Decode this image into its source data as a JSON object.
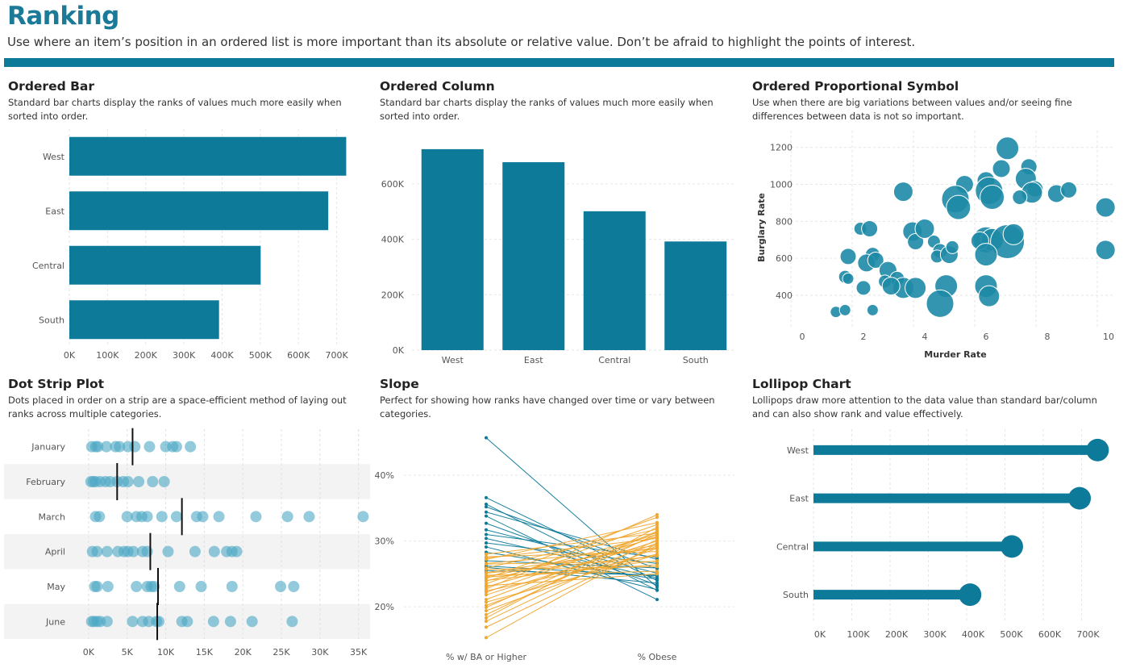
{
  "header": {
    "title": "Ranking",
    "subtitle": "Use where an item’s position in an ordered list is more important than its absolute or relative value. Don’t be afraid to highlight the points of interest."
  },
  "colors": {
    "accent": "#0e7a9a",
    "bubble": "#1d8aa6",
    "dots": "#4ba7c4",
    "slope_a": "#0e7a9a",
    "slope_b": "#efa72f"
  },
  "panels": {
    "ordered_bar": {
      "title": "Ordered Bar",
      "desc": "Standard bar charts display the ranks of values much more easily when sorted into order."
    },
    "ordered_column": {
      "title": "Ordered Column",
      "desc": "Standard bar charts display the ranks of values much more easily when sorted into order."
    },
    "ordered_symbol": {
      "title": "Ordered Proportional Symbol",
      "desc": "Use when there are big variations between values and/or seeing fine differences between data is not so important."
    },
    "dot_strip": {
      "title": "Dot Strip Plot",
      "desc": "Dots placed in order on a strip are a space-efficient method of laying out ranks across multiple categories."
    },
    "slope": {
      "title": "Slope",
      "desc": "Perfect for showing how ranks have changed over time or vary between categories."
    },
    "lollipop": {
      "title": "Lollipop Chart",
      "desc": "Lollipops draw more attention to the data value than standard bar/column and can also show rank and value effectively."
    }
  },
  "chart_data": [
    {
      "id": "bar",
      "type": "bar",
      "orientation": "horizontal",
      "title": "Ordered Bar",
      "categories": [
        "West",
        "East",
        "Central",
        "South"
      ],
      "values": [
        725000,
        678000,
        501000,
        392000
      ],
      "xlim": [
        0,
        760000
      ],
      "ticks": [
        0,
        100000,
        200000,
        300000,
        400000,
        500000,
        600000,
        700000
      ],
      "tick_labels": [
        "0K",
        "100K",
        "200K",
        "300K",
        "400K",
        "500K",
        "600K",
        "700K"
      ]
    },
    {
      "id": "column",
      "type": "bar",
      "orientation": "vertical",
      "title": "Ordered Column",
      "categories": [
        "West",
        "East",
        "Central",
        "South"
      ],
      "values": [
        725000,
        678000,
        501000,
        392000
      ],
      "ylim": [
        0,
        780000
      ],
      "ticks": [
        0,
        200000,
        400000,
        600000
      ],
      "tick_labels": [
        "0K",
        "200K",
        "400K",
        "600K"
      ]
    },
    {
      "id": "symbol",
      "type": "scatter",
      "title": "Ordered Proportional Symbol",
      "xlabel": "Murder Rate",
      "ylabel": "Burglary Rate",
      "xlim": [
        0,
        10.5
      ],
      "ylim": [
        230,
        1290
      ],
      "xticks": [
        0,
        2,
        4,
        6,
        8,
        10
      ],
      "yticks": [
        400,
        600,
        800,
        1000,
        1200
      ],
      "points": [
        [
          6.7,
          1195,
          14
        ],
        [
          6.5,
          1085,
          11
        ],
        [
          7.4,
          1095,
          10
        ],
        [
          7.3,
          1030,
          13
        ],
        [
          7.6,
          975,
          10
        ],
        [
          7.5,
          955,
          13
        ],
        [
          7.1,
          930,
          9
        ],
        [
          8.3,
          950,
          11
        ],
        [
          8.7,
          970,
          10
        ],
        [
          6.0,
          1020,
          11
        ],
        [
          6.1,
          965,
          17
        ],
        [
          6.2,
          930,
          15
        ],
        [
          5.3,
          1000,
          11
        ],
        [
          5.0,
          920,
          17
        ],
        [
          5.1,
          875,
          15
        ],
        [
          3.3,
          960,
          12
        ],
        [
          9.9,
          875,
          12
        ],
        [
          9.9,
          645,
          12
        ],
        [
          3.6,
          745,
          12
        ],
        [
          3.7,
          690,
          10
        ],
        [
          6.0,
          700,
          16
        ],
        [
          6.2,
          700,
          14
        ],
        [
          6.7,
          690,
          21
        ],
        [
          6.9,
          730,
          13
        ],
        [
          5.8,
          695,
          11
        ],
        [
          6.0,
          620,
          14
        ],
        [
          4.0,
          760,
          12
        ],
        [
          1.9,
          760,
          8
        ],
        [
          2.2,
          760,
          10
        ],
        [
          1.5,
          610,
          10
        ],
        [
          2.3,
          620,
          9
        ],
        [
          2.1,
          575,
          11
        ],
        [
          2.4,
          590,
          10
        ],
        [
          2.8,
          535,
          11
        ],
        [
          3.1,
          490,
          9
        ],
        [
          3.3,
          440,
          13
        ],
        [
          1.4,
          500,
          8
        ],
        [
          1.5,
          490,
          7
        ],
        [
          2.0,
          440,
          9
        ],
        [
          2.7,
          475,
          8
        ],
        [
          2.9,
          450,
          11
        ],
        [
          4.3,
          690,
          8
        ],
        [
          4.5,
          640,
          9
        ],
        [
          4.4,
          610,
          8
        ],
        [
          4.8,
          620,
          11
        ],
        [
          4.9,
          660,
          8
        ],
        [
          3.7,
          440,
          13
        ],
        [
          4.7,
          450,
          14
        ],
        [
          4.5,
          355,
          17
        ],
        [
          6.0,
          450,
          14
        ],
        [
          6.1,
          395,
          13
        ],
        [
          1.1,
          310,
          7
        ],
        [
          1.4,
          320,
          7
        ],
        [
          2.3,
          320,
          7
        ]
      ]
    },
    {
      "id": "dotstrip",
      "type": "scatter",
      "title": "Dot Strip Plot",
      "categories": [
        "January",
        "February",
        "March",
        "April",
        "May",
        "June"
      ],
      "xlim": [
        -2500,
        36500
      ],
      "xticks": [
        0,
        5000,
        10000,
        15000,
        20000,
        25000,
        30000,
        35000
      ],
      "tick_labels": [
        "0K",
        "5K",
        "10K",
        "15K",
        "20K",
        "25K",
        "30K",
        "35K"
      ],
      "medians": [
        5700,
        3700,
        12100,
        8000,
        9000,
        8900
      ],
      "values": [
        [
          400,
          900,
          1200,
          2300,
          3500,
          4000,
          5100,
          6000,
          7900,
          10000,
          10900,
          11400,
          13200
        ],
        [
          300,
          600,
          900,
          1500,
          2200,
          2800,
          3700,
          4500,
          5100,
          6500,
          8300,
          9800
        ],
        [
          900,
          1400,
          5000,
          6200,
          6900,
          7600,
          9500,
          11400,
          14000,
          14800,
          16900,
          21700,
          25800,
          28600,
          35600
        ],
        [
          500,
          1100,
          2400,
          3800,
          4600,
          5100,
          5800,
          7000,
          7600,
          10300,
          13800,
          16300,
          17900,
          18600,
          19200
        ],
        [
          800,
          1100,
          2500,
          6200,
          7600,
          8100,
          8500,
          11800,
          14600,
          18600,
          24900,
          26600
        ],
        [
          400,
          700,
          1100,
          1500,
          2400,
          5700,
          7000,
          7800,
          8800,
          9100,
          12100,
          12800,
          16200,
          18400,
          21200,
          26400
        ]
      ]
    },
    {
      "id": "slope",
      "type": "line",
      "title": "Slope",
      "categories": [
        "% w/ BA or Higher",
        "% Obese"
      ],
      "ylim": [
        14,
        47.5
      ],
      "yticks": [
        20,
        30,
        40
      ],
      "tick_labels": [
        "20%",
        "30%",
        "40%"
      ],
      "pairs": [
        [
          45.7,
          23
        ],
        [
          36.6,
          24
        ],
        [
          35.6,
          22.5
        ],
        [
          35.2,
          25.8
        ],
        [
          34.4,
          27.2
        ],
        [
          33.8,
          21.1
        ],
        [
          32.7,
          23.3
        ],
        [
          31.7,
          25.1
        ],
        [
          31.0,
          27.5
        ],
        [
          30.4,
          24.4
        ],
        [
          29.7,
          26.6
        ],
        [
          29.1,
          22.6
        ],
        [
          28.3,
          24.2
        ],
        [
          27.6,
          28.4
        ],
        [
          27.0,
          25.9
        ],
        [
          26.5,
          26.9
        ],
        [
          26.0,
          23.6
        ],
        [
          25.5,
          24.8
        ],
        [
          25.1,
          27.7
        ],
        [
          24.6,
          29.4
        ],
        [
          24.3,
          33.6
        ],
        [
          23.9,
          31.0
        ],
        [
          23.5,
          32.5
        ],
        [
          23.0,
          30.6
        ],
        [
          22.7,
          34.0
        ],
        [
          22.2,
          31.3
        ],
        [
          21.8,
          30.0
        ],
        [
          21.1,
          30.8
        ],
        [
          20.7,
          27.9
        ],
        [
          20.2,
          29.7
        ],
        [
          19.9,
          31.5
        ],
        [
          19.4,
          28.9
        ],
        [
          18.8,
          31.1
        ],
        [
          18.3,
          32.1
        ],
        [
          17.8,
          30.2
        ],
        [
          16.9,
          29.3
        ],
        [
          15.3,
          29.6
        ],
        [
          26.6,
          28.8
        ],
        [
          27.4,
          30.4
        ],
        [
          25.9,
          31.8
        ],
        [
          24.0,
          27.0
        ],
        [
          22.4,
          28.0
        ],
        [
          28.0,
          31.2
        ],
        [
          27.2,
          32.8
        ],
        [
          26.2,
          24.7
        ],
        [
          25.7,
          26.1
        ],
        [
          25.2,
          29.0
        ],
        [
          24.8,
          25.4
        ],
        [
          23.2,
          25.0
        ],
        [
          24.5,
          26.4
        ]
      ]
    },
    {
      "id": "lollipop",
      "type": "bar",
      "orientation": "horizontal",
      "title": "Lollipop Chart",
      "categories": [
        "West",
        "East",
        "Central",
        "South"
      ],
      "values": [
        725000,
        678000,
        501000,
        392000
      ],
      "xlim": [
        0,
        760000
      ],
      "ticks": [
        0,
        100000,
        200000,
        300000,
        400000,
        500000,
        600000,
        700000
      ],
      "tick_labels": [
        "0K",
        "100K",
        "200K",
        "300K",
        "400K",
        "500K",
        "600K",
        "700K"
      ]
    }
  ]
}
